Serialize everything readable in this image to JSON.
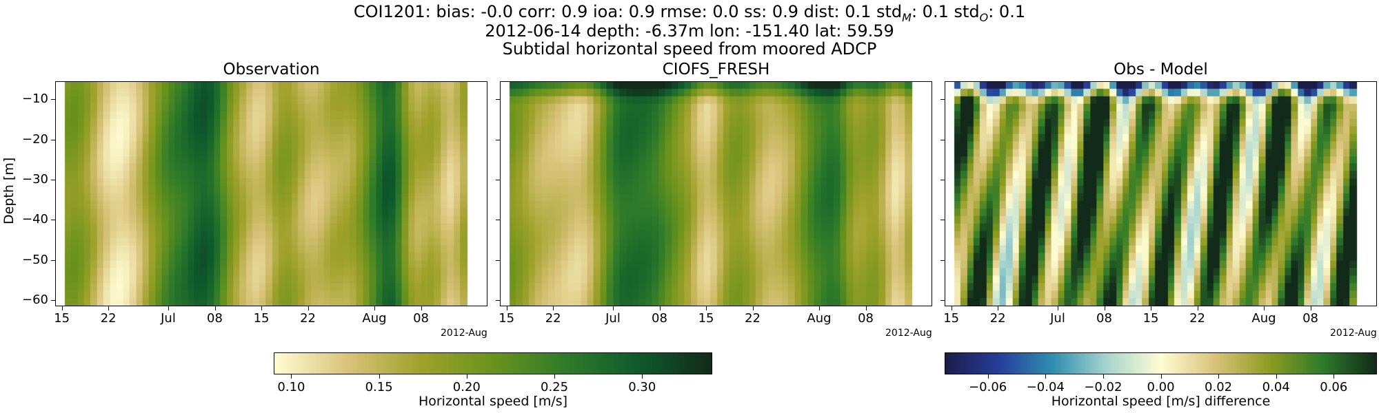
{
  "header": {
    "line1_text": "COI1201: bias: -0.0  corr: 0.9  ioa: 0.9  rmse: 0.0  ss: 0.9  dist: 0.1  std",
    "line1_stdM_sub": "M",
    "line1_mid": ": 0.1  std",
    "line1_stdO_sub": "O",
    "line1_end": ": 0.1",
    "line2": "2012-06-14 depth: -6.37m lon: -151.40 lat: 59.59",
    "line3": "Subtidal horizontal speed from moored ADCP"
  },
  "chart_data": [
    {
      "type": "heatmap",
      "title": "Observation",
      "ylabel": "Depth [m]",
      "x_tick_labels": [
        "15",
        "22",
        "Jul",
        "08",
        "15",
        "22",
        "Aug",
        "08"
      ],
      "x_offset_label": "2012-Aug",
      "y_tick_labels": [
        "−10",
        "−20",
        "−30",
        "−40",
        "−50",
        "−60"
      ],
      "y_ticks": [
        -10,
        -20,
        -30,
        -40,
        -50,
        -60
      ],
      "ylim": [
        -61.5,
        -5.5
      ],
      "xlim": [
        "2012-06-14",
        "2012-08-18"
      ],
      "colormap": "speed",
      "value_range": [
        0.09,
        0.34
      ]
    },
    {
      "type": "heatmap",
      "title": "CIOFS_FRESH",
      "x_tick_labels": [
        "15",
        "22",
        "Jul",
        "08",
        "15",
        "22",
        "Aug",
        "08"
      ],
      "x_offset_label": "2012-Aug",
      "ylim": [
        -61.5,
        -5.5
      ],
      "xlim": [
        "2012-06-14",
        "2012-08-18"
      ],
      "colormap": "speed",
      "value_range": [
        0.09,
        0.34
      ]
    },
    {
      "type": "heatmap",
      "title": "Obs - Model",
      "x_tick_labels": [
        "15",
        "22",
        "Jul",
        "08",
        "15",
        "22",
        "Aug",
        "08"
      ],
      "x_offset_label": "2012-Aug",
      "ylim": [
        -61.5,
        -5.5
      ],
      "xlim": [
        "2012-06-14",
        "2012-08-18"
      ],
      "colormap": "diff",
      "value_range": [
        -0.075,
        0.075
      ]
    }
  ],
  "colorbars": [
    {
      "label": "Horizontal speed [m/s]",
      "tick_labels": [
        "0.10",
        "0.15",
        "0.20",
        "0.25",
        "0.30"
      ],
      "ticks": [
        0.1,
        0.15,
        0.2,
        0.25,
        0.3
      ],
      "range": [
        0.09,
        0.34
      ],
      "colors": [
        "#fffcd2",
        "#d9c37a",
        "#a0a12a",
        "#6a931c",
        "#2e7b2a",
        "#0f5a2c",
        "#122a1a"
      ]
    },
    {
      "label": "Horizontal speed [m/s] difference",
      "tick_labels": [
        "−0.06",
        "−0.04",
        "−0.02",
        "0.00",
        "0.02",
        "0.04",
        "0.06"
      ],
      "ticks": [
        -0.06,
        -0.04,
        -0.02,
        0.0,
        0.02,
        0.04,
        0.06
      ],
      "range": [
        -0.075,
        0.075
      ],
      "colors": [
        "#1d1d4b",
        "#263e9c",
        "#2f8fb0",
        "#a7d4cf",
        "#fffcd2",
        "#d9c37a",
        "#8f9c20",
        "#2e7b2a",
        "#122a1a"
      ]
    }
  ]
}
